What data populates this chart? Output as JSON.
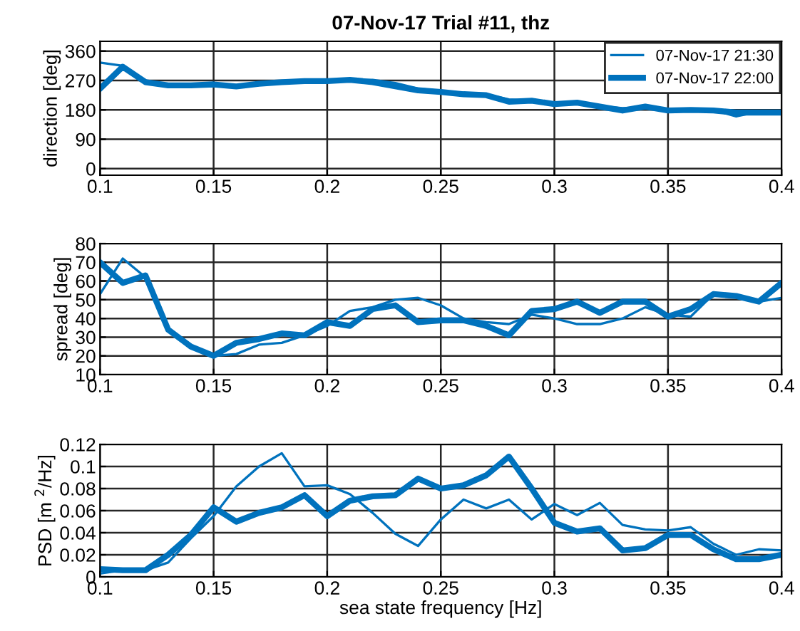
{
  "chart_data": [
    {
      "type": "line",
      "title": "07-Nov-17 Trial #11, thz",
      "ylabel": "direction [deg]",
      "xlim": [
        0.1,
        0.4
      ],
      "xticks": [
        0.1,
        0.15,
        0.2,
        0.25,
        0.3,
        0.35,
        0.4
      ],
      "ylim": [
        -20,
        390
      ],
      "yticks": [
        0,
        90,
        180,
        270,
        360
      ],
      "grid": true,
      "legend": "top right",
      "x": [
        0.1,
        0.11,
        0.12,
        0.13,
        0.14,
        0.15,
        0.16,
        0.17,
        0.18,
        0.19,
        0.2,
        0.21,
        0.22,
        0.23,
        0.24,
        0.25,
        0.26,
        0.27,
        0.28,
        0.29,
        0.3,
        0.31,
        0.32,
        0.33,
        0.34,
        0.35,
        0.36,
        0.37,
        0.38,
        0.39,
        0.4
      ],
      "series": [
        {
          "name": "07-Nov-17 21:30",
          "color": "#0072bd",
          "values": [
            325,
            315,
            270,
            258,
            258,
            258,
            255,
            262,
            268,
            268,
            268,
            272,
            272,
            262,
            245,
            238,
            232,
            228,
            212,
            208,
            200,
            202,
            192,
            185,
            188,
            182,
            182,
            180,
            160,
            175,
            175
          ]
        },
        {
          "name": "07-Nov-17 22:00",
          "color": "#0072bd",
          "values": [
            245,
            312,
            265,
            255,
            255,
            258,
            252,
            260,
            265,
            268,
            268,
            272,
            265,
            252,
            240,
            235,
            228,
            225,
            205,
            208,
            198,
            202,
            190,
            178,
            190,
            178,
            180,
            178,
            172,
            172,
            172
          ]
        }
      ]
    },
    {
      "type": "line",
      "ylabel": "spread [deg]",
      "xlim": [
        0.1,
        0.4
      ],
      "xticks": [
        0.1,
        0.15,
        0.2,
        0.25,
        0.3,
        0.35,
        0.4
      ],
      "ylim": [
        10,
        80
      ],
      "yticks": [
        10,
        20,
        30,
        40,
        50,
        60,
        70,
        80
      ],
      "grid": true,
      "x": [
        0.1,
        0.11,
        0.12,
        0.13,
        0.14,
        0.15,
        0.16,
        0.17,
        0.18,
        0.19,
        0.2,
        0.21,
        0.22,
        0.23,
        0.24,
        0.25,
        0.26,
        0.27,
        0.28,
        0.29,
        0.3,
        0.31,
        0.32,
        0.33,
        0.34,
        0.35,
        0.36,
        0.37,
        0.38,
        0.39,
        0.4
      ],
      "series": [
        {
          "color": "#0072bd",
          "values": [
            53,
            72,
            62,
            35,
            25,
            20,
            21,
            26,
            27,
            31,
            36,
            44,
            46,
            50,
            51,
            47,
            40,
            38,
            37,
            42,
            40,
            37,
            37,
            40,
            46,
            42,
            41,
            53,
            52,
            49,
            51
          ]
        },
        {
          "color": "#0072bd",
          "values": [
            70,
            59,
            63,
            34,
            25,
            20,
            27,
            29,
            32,
            31,
            38,
            36,
            45,
            47,
            38,
            39,
            39,
            36,
            31,
            44,
            45,
            49,
            43,
            49,
            49,
            41,
            45,
            53,
            52,
            49,
            59
          ]
        }
      ]
    },
    {
      "type": "line",
      "ylabel": "PSD [m $^{2}$/Hz]",
      "xlabel": "sea state frequency [Hz]",
      "xlim": [
        0.1,
        0.4
      ],
      "xticks": [
        0.1,
        0.15,
        0.2,
        0.25,
        0.3,
        0.35,
        0.4
      ],
      "ylim": [
        0,
        0.12
      ],
      "yticks": [
        0,
        0.02,
        0.04,
        0.06,
        0.08,
        0.1,
        0.12
      ],
      "grid": true,
      "x": [
        0.1,
        0.11,
        0.12,
        0.13,
        0.14,
        0.15,
        0.16,
        0.17,
        0.18,
        0.19,
        0.2,
        0.21,
        0.22,
        0.23,
        0.24,
        0.25,
        0.26,
        0.27,
        0.28,
        0.29,
        0.3,
        0.31,
        0.32,
        0.33,
        0.34,
        0.35,
        0.36,
        0.37,
        0.38,
        0.39,
        0.4
      ],
      "series": [
        {
          "color": "#0072bd",
          "values": [
            0.003,
            0.006,
            0.006,
            0.013,
            0.035,
            0.055,
            0.082,
            0.1,
            0.112,
            0.082,
            0.083,
            0.075,
            0.058,
            0.039,
            0.028,
            0.052,
            0.07,
            0.062,
            0.07,
            0.052,
            0.066,
            0.056,
            0.067,
            0.047,
            0.043,
            0.042,
            0.045,
            0.03,
            0.02,
            0.025,
            0.024
          ]
        },
        {
          "color": "#0072bd",
          "values": [
            0.007,
            0.006,
            0.006,
            0.02,
            0.038,
            0.063,
            0.05,
            0.058,
            0.063,
            0.074,
            0.055,
            0.069,
            0.073,
            0.074,
            0.089,
            0.08,
            0.083,
            0.092,
            0.109,
            0.08,
            0.049,
            0.041,
            0.044,
            0.024,
            0.026,
            0.038,
            0.038,
            0.025,
            0.016,
            0.016,
            0.02
          ]
        }
      ]
    }
  ]
}
